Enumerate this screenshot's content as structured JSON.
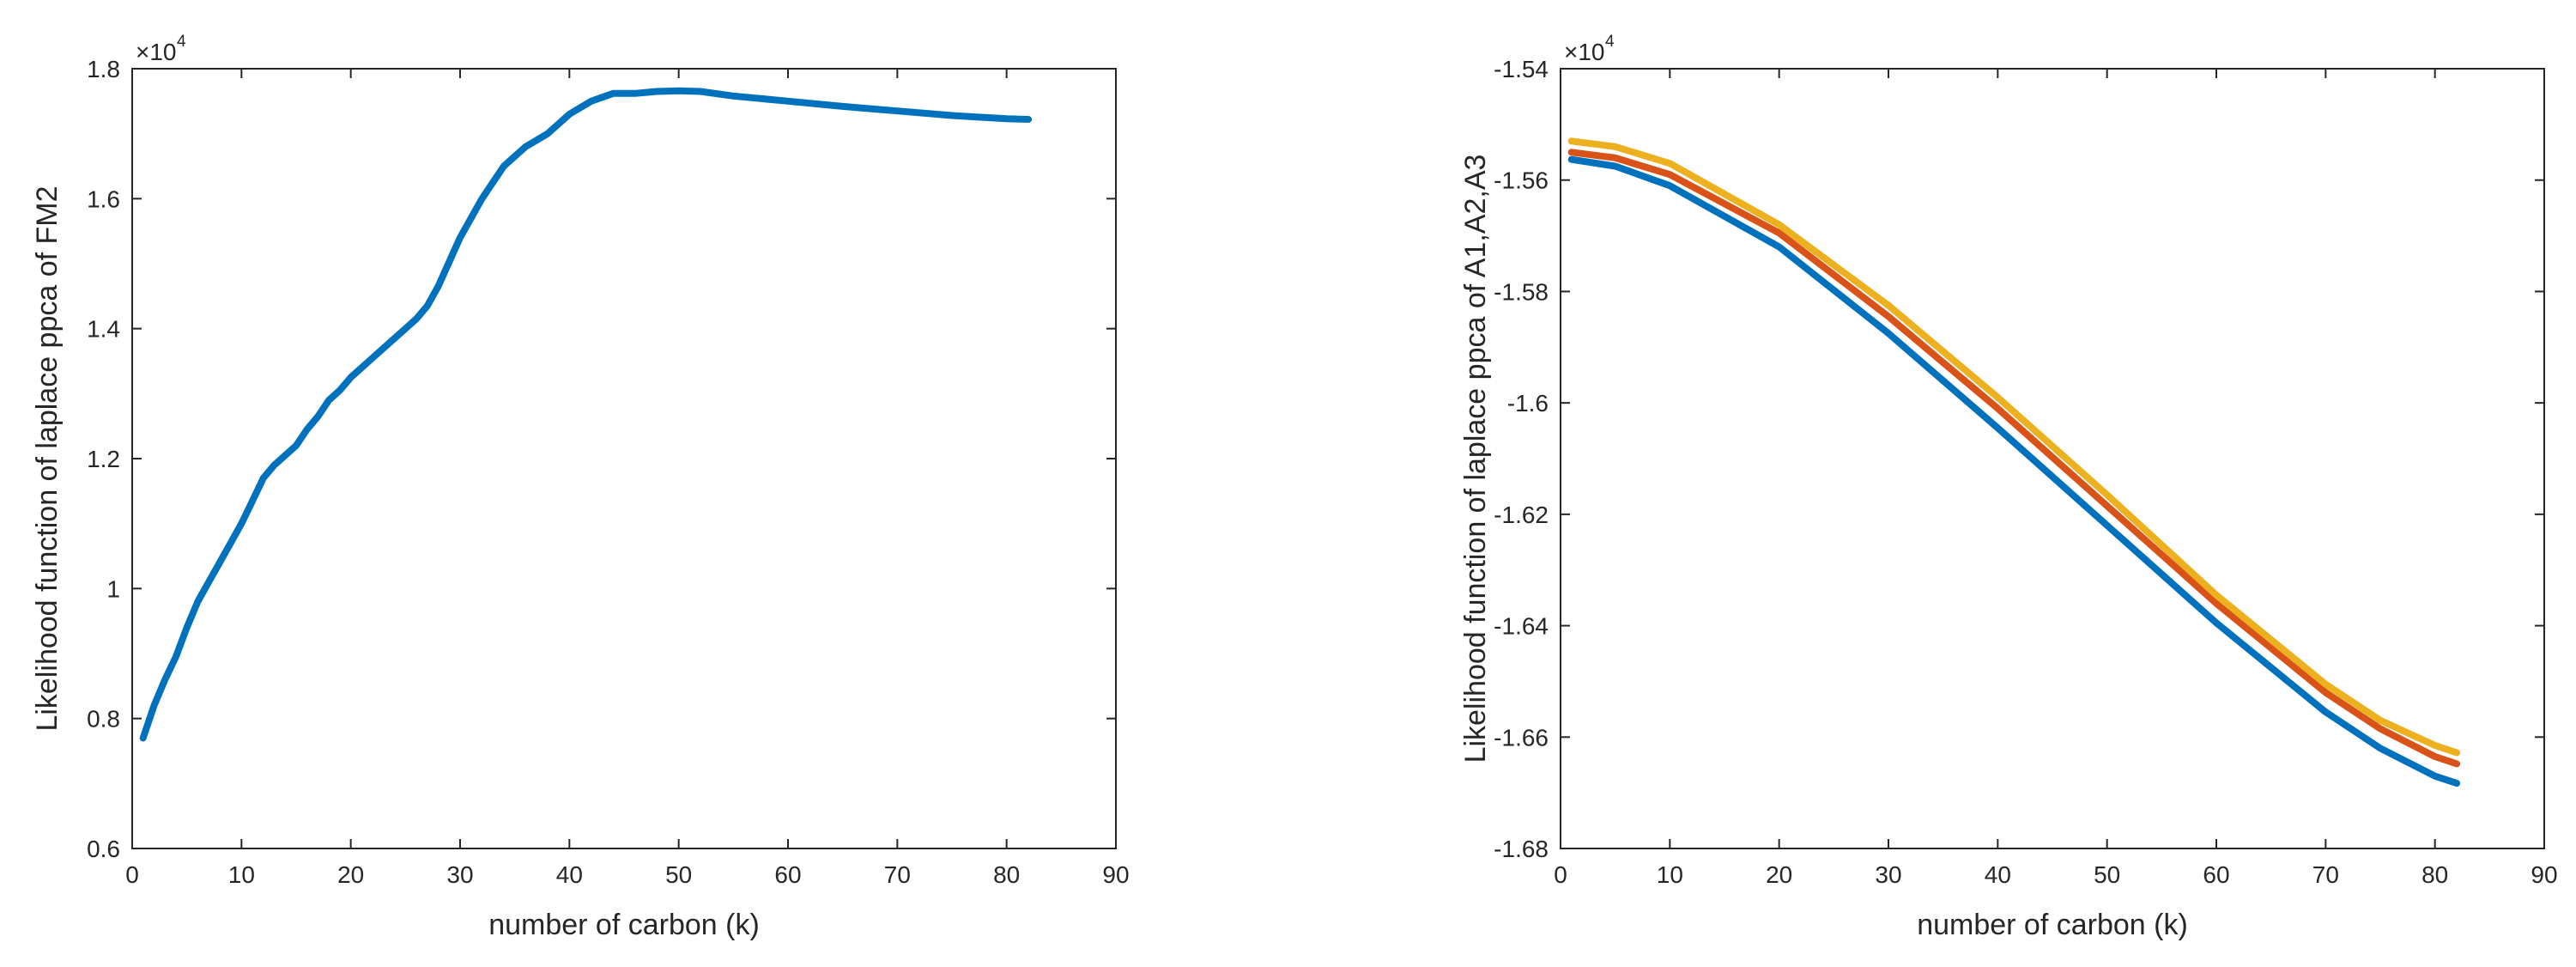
{
  "chart_data": [
    {
      "type": "line",
      "title": "",
      "xlabel": "number of carbon (k)",
      "ylabel": "Likelihood function of laplace ppca of FM2",
      "xlim": [
        0,
        90
      ],
      "ylim": [
        6000,
        18000
      ],
      "xticks": [
        0,
        10,
        20,
        30,
        40,
        50,
        60,
        70,
        80,
        90
      ],
      "xtick_labels": [
        "0",
        "10",
        "20",
        "30",
        "40",
        "50",
        "60",
        "70",
        "80",
        "90"
      ],
      "yticks": [
        6000,
        8000,
        10000,
        12000,
        14000,
        16000,
        18000
      ],
      "ytick_labels": [
        "0.6",
        "0.8",
        "1",
        "1.2",
        "1.4",
        "1.6",
        "1.8"
      ],
      "exponent_base": "×10",
      "exponent_power": "4",
      "series": [
        {
          "name": "FM2",
          "color": "#0072BD",
          "x": [
            1,
            2,
            3,
            4,
            5,
            6,
            7,
            8,
            9,
            10,
            11,
            12,
            13,
            14,
            15,
            16,
            17,
            18,
            19,
            20,
            22,
            24,
            26,
            27,
            28,
            30,
            32,
            34,
            36,
            38,
            40,
            42,
            44,
            46,
            48,
            50,
            52,
            55,
            60,
            65,
            70,
            75,
            80,
            82
          ],
          "values": [
            7700,
            8200,
            8600,
            8950,
            9400,
            9800,
            10100,
            10400,
            10700,
            11000,
            11350,
            11700,
            11900,
            12050,
            12200,
            12450,
            12650,
            12900,
            13050,
            13250,
            13550,
            13850,
            14150,
            14350,
            14650,
            15400,
            16000,
            16500,
            16800,
            17000,
            17300,
            17500,
            17620,
            17620,
            17650,
            17660,
            17650,
            17580,
            17500,
            17420,
            17350,
            17280,
            17230,
            17220
          ]
        }
      ]
    },
    {
      "type": "line",
      "title": "",
      "xlabel": "number of carbon (k)",
      "ylabel": "Likelihood  function of laplace ppca of A1,A2,A3",
      "xlim": [
        0,
        90
      ],
      "ylim": [
        -16800,
        -15400
      ],
      "xticks": [
        0,
        10,
        20,
        30,
        40,
        50,
        60,
        70,
        80,
        90
      ],
      "xtick_labels": [
        "0",
        "10",
        "20",
        "30",
        "40",
        "50",
        "60",
        "70",
        "80",
        "90"
      ],
      "yticks": [
        -16800,
        -16600,
        -16400,
        -16200,
        -16000,
        -15800,
        -15600,
        -15400
      ],
      "ytick_labels": [
        "-1.68",
        "-1.66",
        "-1.64",
        "-1.62",
        "-1.6",
        "-1.58",
        "-1.56",
        "-1.54"
      ],
      "exponent_base": "×10",
      "exponent_power": "4",
      "series": [
        {
          "name": "A1",
          "color": "#0072BD",
          "x": [
            1,
            5,
            10,
            20,
            30,
            40,
            50,
            60,
            70,
            75,
            80,
            82
          ],
          "values": [
            -15563,
            -15575,
            -15610,
            -15720,
            -15875,
            -16045,
            -16220,
            -16395,
            -16555,
            -16620,
            -16670,
            -16683
          ]
        },
        {
          "name": "A2",
          "color": "#D95319",
          "x": [
            1,
            5,
            10,
            20,
            30,
            40,
            50,
            60,
            70,
            75,
            80,
            82
          ],
          "values": [
            -15550,
            -15560,
            -15590,
            -15695,
            -15845,
            -16010,
            -16185,
            -16360,
            -16520,
            -16585,
            -16635,
            -16648
          ]
        },
        {
          "name": "A3",
          "color": "#EDB120",
          "x": [
            1,
            5,
            10,
            20,
            30,
            40,
            50,
            60,
            70,
            75,
            80,
            82
          ],
          "values": [
            -15530,
            -15540,
            -15570,
            -15680,
            -15825,
            -15990,
            -16165,
            -16345,
            -16505,
            -16570,
            -16615,
            -16628
          ]
        }
      ]
    }
  ]
}
